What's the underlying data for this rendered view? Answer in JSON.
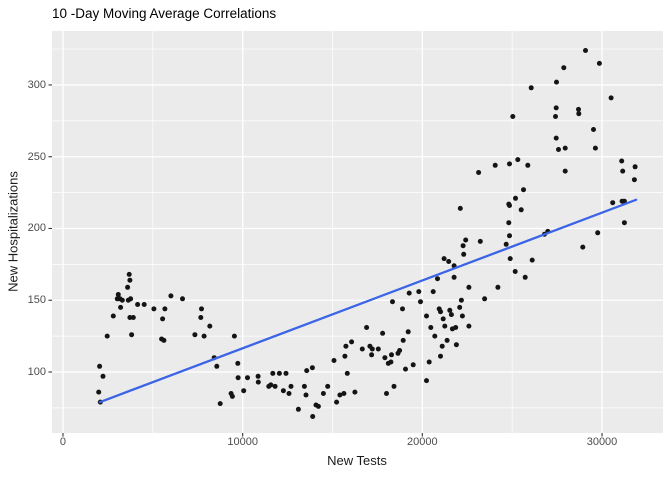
{
  "chart_data": {
    "type": "scatter",
    "title": "10 -Day Moving Average Correlations",
    "xlabel": "New Tests",
    "ylabel": "New Hospitalizations",
    "x_ticks": [
      0,
      10000,
      20000,
      30000
    ],
    "x_minor_ticks": [
      5000,
      15000,
      25000
    ],
    "y_ticks": [
      100,
      150,
      200,
      250,
      300
    ],
    "y_minor_ticks": [
      75,
      125,
      175,
      225,
      275,
      325
    ],
    "xlim": [
      -612,
      33395
    ],
    "ylim": [
      57.5,
      337.6
    ],
    "grid": true,
    "legend": "none",
    "trendline": {
      "type": "linear",
      "x": [
        2050,
        31900
      ],
      "y": [
        79,
        220
      ]
    },
    "points": [
      [
        1985,
        86
      ],
      [
        2040,
        104
      ],
      [
        2076,
        79
      ],
      [
        2224,
        97
      ],
      [
        2463,
        125
      ],
      [
        2800,
        139
      ],
      [
        3021,
        151
      ],
      [
        3076,
        154
      ],
      [
        3170,
        151
      ],
      [
        3206,
        145
      ],
      [
        3299,
        150
      ],
      [
        3596,
        159
      ],
      [
        3632,
        150
      ],
      [
        3687,
        168
      ],
      [
        3726,
        164
      ],
      [
        3726,
        138
      ],
      [
        3765,
        151
      ],
      [
        3820,
        126
      ],
      [
        3911,
        138
      ],
      [
        4152,
        147
      ],
      [
        4521,
        147
      ],
      [
        5059,
        144
      ],
      [
        5487,
        123
      ],
      [
        5542,
        137
      ],
      [
        5616,
        122
      ],
      [
        5671,
        144
      ],
      [
        6005,
        153
      ],
      [
        6654,
        151
      ],
      [
        7339,
        126
      ],
      [
        7672,
        138
      ],
      [
        7711,
        144
      ],
      [
        7856,
        125
      ],
      [
        8173,
        132
      ],
      [
        8413,
        110
      ],
      [
        8561,
        104
      ],
      [
        8750,
        78
      ],
      [
        9356,
        85
      ],
      [
        9431,
        83
      ],
      [
        9542,
        125
      ],
      [
        9727,
        106
      ],
      [
        9746,
        96
      ],
      [
        10060,
        87
      ],
      [
        10269,
        96
      ],
      [
        10861,
        97
      ],
      [
        10872,
        93
      ],
      [
        11453,
        90
      ],
      [
        11564,
        91
      ],
      [
        11675,
        99
      ],
      [
        11803,
        90
      ],
      [
        12047,
        99
      ],
      [
        12269,
        87
      ],
      [
        12414,
        99
      ],
      [
        12581,
        85
      ],
      [
        12692,
        90
      ],
      [
        13103,
        74
      ],
      [
        13436,
        90
      ],
      [
        13525,
        84
      ],
      [
        13564,
        101
      ],
      [
        13881,
        103
      ],
      [
        13897,
        69
      ],
      [
        14081,
        77
      ],
      [
        14214,
        76
      ],
      [
        14492,
        85
      ],
      [
        14731,
        90
      ],
      [
        15082,
        108
      ],
      [
        15230,
        79
      ],
      [
        15414,
        84
      ],
      [
        15636,
        85
      ],
      [
        15692,
        111
      ],
      [
        15747,
        118
      ],
      [
        15825,
        99
      ],
      [
        16064,
        121
      ],
      [
        16247,
        86
      ],
      [
        16659,
        116
      ],
      [
        16898,
        131
      ],
      [
        17081,
        118
      ],
      [
        17175,
        112
      ],
      [
        17214,
        116
      ],
      [
        17547,
        116
      ],
      [
        17786,
        127
      ],
      [
        17914,
        110
      ],
      [
        18008,
        85
      ],
      [
        18103,
        106
      ],
      [
        18248,
        107
      ],
      [
        18286,
        112
      ],
      [
        18342,
        149
      ],
      [
        18425,
        90
      ],
      [
        18648,
        113
      ],
      [
        18737,
        115
      ],
      [
        18898,
        144
      ],
      [
        18937,
        122
      ],
      [
        19065,
        102
      ],
      [
        19215,
        128
      ],
      [
        19270,
        155
      ],
      [
        19492,
        105
      ],
      [
        19804,
        156
      ],
      [
        19898,
        149
      ],
      [
        20231,
        139
      ],
      [
        20231,
        94
      ],
      [
        20382,
        107
      ],
      [
        20471,
        131
      ],
      [
        20604,
        156
      ],
      [
        20693,
        125
      ],
      [
        20842,
        165
      ],
      [
        20937,
        144
      ],
      [
        21009,
        142
      ],
      [
        21009,
        111
      ],
      [
        21103,
        118
      ],
      [
        21159,
        137
      ],
      [
        21214,
        179
      ],
      [
        21248,
        132
      ],
      [
        21381,
        122
      ],
      [
        21470,
        177
      ],
      [
        21526,
        143
      ],
      [
        21620,
        140
      ],
      [
        21676,
        130
      ],
      [
        21770,
        174
      ],
      [
        21770,
        166
      ],
      [
        21859,
        131
      ],
      [
        21898,
        119
      ],
      [
        22081,
        145
      ],
      [
        22112,
        214
      ],
      [
        22176,
        150
      ],
      [
        22231,
        139
      ],
      [
        22270,
        188
      ],
      [
        22300,
        182
      ],
      [
        22415,
        192
      ],
      [
        22593,
        159
      ],
      [
        22593,
        132
      ],
      [
        23129,
        239
      ],
      [
        23224,
        191
      ],
      [
        23464,
        151
      ],
      [
        24057,
        244
      ],
      [
        24205,
        159
      ],
      [
        24669,
        189
      ],
      [
        24814,
        217
      ],
      [
        24814,
        204
      ],
      [
        24853,
        216
      ],
      [
        24853,
        245
      ],
      [
        24853,
        195
      ],
      [
        24892,
        179
      ],
      [
        25037,
        278
      ],
      [
        25170,
        170
      ],
      [
        25187,
        221
      ],
      [
        25315,
        248
      ],
      [
        25504,
        213
      ],
      [
        25631,
        227
      ],
      [
        25726,
        166
      ],
      [
        25870,
        244
      ],
      [
        26059,
        298
      ],
      [
        26115,
        178
      ],
      [
        26799,
        196
      ],
      [
        26983,
        198
      ],
      [
        27411,
        278
      ],
      [
        27450,
        284
      ],
      [
        27450,
        263
      ],
      [
        27466,
        302
      ],
      [
        27578,
        255
      ],
      [
        27872,
        312
      ],
      [
        27950,
        256
      ],
      [
        27950,
        240
      ],
      [
        28690,
        283
      ],
      [
        28708,
        280
      ],
      [
        28929,
        187
      ],
      [
        29079,
        324
      ],
      [
        29524,
        269
      ],
      [
        29635,
        256
      ],
      [
        29763,
        197
      ],
      [
        29857,
        315
      ],
      [
        30507,
        291
      ],
      [
        30596,
        218
      ],
      [
        31096,
        247
      ],
      [
        31118,
        219
      ],
      [
        31152,
        240
      ],
      [
        31246,
        219
      ],
      [
        31246,
        204
      ],
      [
        31802,
        234
      ],
      [
        31841,
        243
      ]
    ],
    "colors": {
      "point": "#141414",
      "line": "#3B64E6",
      "panel_background": "#EBEBEB",
      "grid": "#FFFFFF",
      "tick_label": "#4D4D4D",
      "tick_mark": "#333333",
      "axis_title": "#1A1A1A",
      "title": "#000000"
    }
  }
}
